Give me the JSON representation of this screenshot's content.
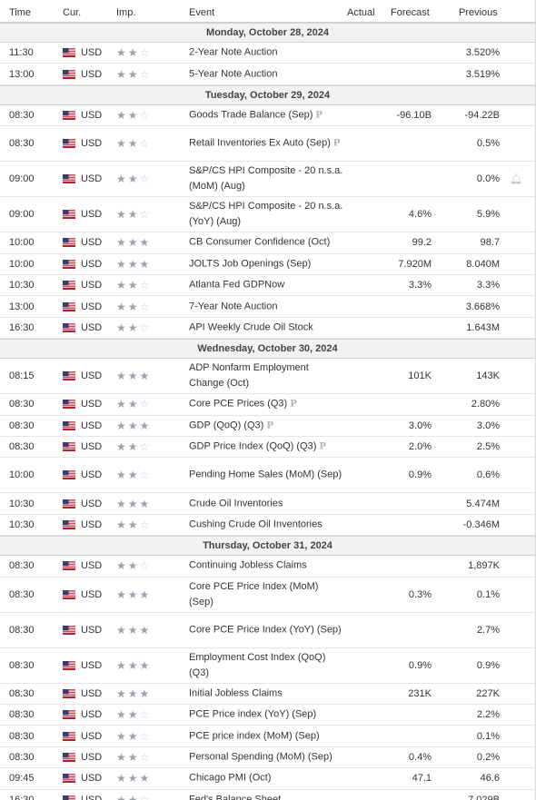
{
  "header": {
    "time": "Time",
    "currency": "Cur.",
    "importance": "Imp.",
    "event": "Event",
    "actual": "Actual",
    "forecast": "Forecast",
    "previous": "Previous"
  },
  "p_label": "P",
  "days": [
    {
      "label": "Monday, October 28, 2024",
      "rows": [
        {
          "time": "11:30",
          "cur": "USD",
          "imp": 2,
          "event": "2-Year Note Auction",
          "p": false,
          "forecast": "",
          "previous": "3.520%",
          "lines": 1
        },
        {
          "time": "13:00",
          "cur": "USD",
          "imp": 2,
          "event": "5-Year Note Auction",
          "p": false,
          "forecast": "",
          "previous": "3.519%",
          "lines": 1
        }
      ]
    },
    {
      "label": "Tuesday, October 29, 2024",
      "rows": [
        {
          "time": "08:30",
          "cur": "USD",
          "imp": 2,
          "event": "Goods Trade Balance (Sep)",
          "p": true,
          "forecast": "-96.10B",
          "previous": "-94.22B",
          "lines": 1
        },
        {
          "time": "08:30",
          "cur": "USD",
          "imp": 2,
          "event": "Retail Inventories Ex Auto (Sep)",
          "p": true,
          "forecast": "",
          "previous": "0.5%",
          "lines": 2
        },
        {
          "time": "09:00",
          "cur": "USD",
          "imp": 2,
          "event": "S&P/CS HPI Composite - 20 n.s.a. (MoM) (Aug)",
          "p": false,
          "forecast": "",
          "previous": "0.0%",
          "lines": 2,
          "alert": true
        },
        {
          "time": "09:00",
          "cur": "USD",
          "imp": 2,
          "event": "S&P/CS HPI Composite - 20 n.s.a. (YoY) (Aug)",
          "p": false,
          "forecast": "4.6%",
          "previous": "5.9%",
          "lines": 2
        },
        {
          "time": "10:00",
          "cur": "USD",
          "imp": 3,
          "event": "CB Consumer Confidence (Oct)",
          "p": false,
          "forecast": "99.2",
          "previous": "98.7",
          "lines": 1
        },
        {
          "time": "10:00",
          "cur": "USD",
          "imp": 3,
          "event": "JOLTS Job Openings (Sep)",
          "p": false,
          "forecast": "7.920M",
          "previous": "8.040M",
          "lines": 1
        },
        {
          "time": "10:30",
          "cur": "USD",
          "imp": 2,
          "event": "Atlanta Fed GDPNow",
          "p": false,
          "forecast": "3.3%",
          "previous": "3.3%",
          "lines": 1
        },
        {
          "time": "13:00",
          "cur": "USD",
          "imp": 2,
          "event": "7-Year Note Auction",
          "p": false,
          "forecast": "",
          "previous": "3.668%",
          "lines": 1
        },
        {
          "time": "16:30",
          "cur": "USD",
          "imp": 2,
          "event": "API Weekly Crude Oil Stock",
          "p": false,
          "forecast": "",
          "previous": "1.643M",
          "lines": 1
        }
      ]
    },
    {
      "label": "Wednesday, October 30, 2024",
      "rows": [
        {
          "time": "08:15",
          "cur": "USD",
          "imp": 3,
          "event": "ADP Nonfarm Employment Change (Oct)",
          "p": false,
          "forecast": "101K",
          "previous": "143K",
          "lines": 2
        },
        {
          "time": "08:30",
          "cur": "USD",
          "imp": 2,
          "event": "Core PCE Prices (Q3)",
          "p": true,
          "forecast": "",
          "previous": "2.80%",
          "lines": 1
        },
        {
          "time": "08:30",
          "cur": "USD",
          "imp": 3,
          "event": "GDP (QoQ) (Q3)",
          "p": true,
          "forecast": "3.0%",
          "previous": "3.0%",
          "lines": 1
        },
        {
          "time": "08:30",
          "cur": "USD",
          "imp": 2,
          "event": "GDP Price Index (QoQ) (Q3)",
          "p": true,
          "forecast": "2.0%",
          "previous": "2.5%",
          "lines": 1
        },
        {
          "time": "10:00",
          "cur": "USD",
          "imp": 2,
          "event": "Pending Home Sales (MoM) (Sep)",
          "p": false,
          "forecast": "0.9%",
          "previous": "0.6%",
          "lines": 2
        },
        {
          "time": "10:30",
          "cur": "USD",
          "imp": 3,
          "event": "Crude Oil Inventories",
          "p": false,
          "forecast": "",
          "previous": "5.474M",
          "lines": 1
        },
        {
          "time": "10:30",
          "cur": "USD",
          "imp": 2,
          "event": "Cushing Crude Oil Inventories",
          "p": false,
          "forecast": "",
          "previous": "-0.346M",
          "lines": 1
        }
      ]
    },
    {
      "label": "Thursday, October 31, 2024",
      "rows": [
        {
          "time": "08:30",
          "cur": "USD",
          "imp": 2,
          "event": "Continuing Jobless Claims",
          "p": false,
          "forecast": "",
          "previous": "1,897K",
          "lines": 1
        },
        {
          "time": "08:30",
          "cur": "USD",
          "imp": 3,
          "event": "Core PCE Price Index (MoM) (Sep)",
          "p": false,
          "forecast": "0.3%",
          "previous": "0.1%",
          "lines": 2
        },
        {
          "time": "08:30",
          "cur": "USD",
          "imp": 3,
          "event": "Core PCE Price Index (YoY) (Sep)",
          "p": false,
          "forecast": "",
          "previous": "2.7%",
          "lines": 2
        },
        {
          "time": "08:30",
          "cur": "USD",
          "imp": 3,
          "event": "Employment Cost Index (QoQ) (Q3)",
          "p": false,
          "forecast": "0.9%",
          "previous": "0.9%",
          "lines": 2
        },
        {
          "time": "08:30",
          "cur": "USD",
          "imp": 3,
          "event": "Initial Jobless Claims",
          "p": false,
          "forecast": "231K",
          "previous": "227K",
          "lines": 1
        },
        {
          "time": "08:30",
          "cur": "USD",
          "imp": 2,
          "event": "PCE Price index (YoY) (Sep)",
          "p": false,
          "forecast": "",
          "previous": "2.2%",
          "lines": 1
        },
        {
          "time": "08:30",
          "cur": "USD",
          "imp": 2,
          "event": "PCE price index (MoM) (Sep)",
          "p": false,
          "forecast": "",
          "previous": "0.1%",
          "lines": 1
        },
        {
          "time": "08:30",
          "cur": "USD",
          "imp": 2,
          "event": "Personal Spending (MoM) (Sep)",
          "p": false,
          "forecast": "0.4%",
          "previous": "0.2%",
          "lines": 1
        },
        {
          "time": "09:45",
          "cur": "USD",
          "imp": 3,
          "event": "Chicago PMI (Oct)",
          "p": false,
          "forecast": "47.1",
          "previous": "46.6",
          "lines": 1
        },
        {
          "time": "16:30",
          "cur": "USD",
          "imp": 2,
          "event": "Fed's Balance Sheet",
          "p": false,
          "forecast": "",
          "previous": "7,029B",
          "lines": 1
        }
      ]
    }
  ]
}
